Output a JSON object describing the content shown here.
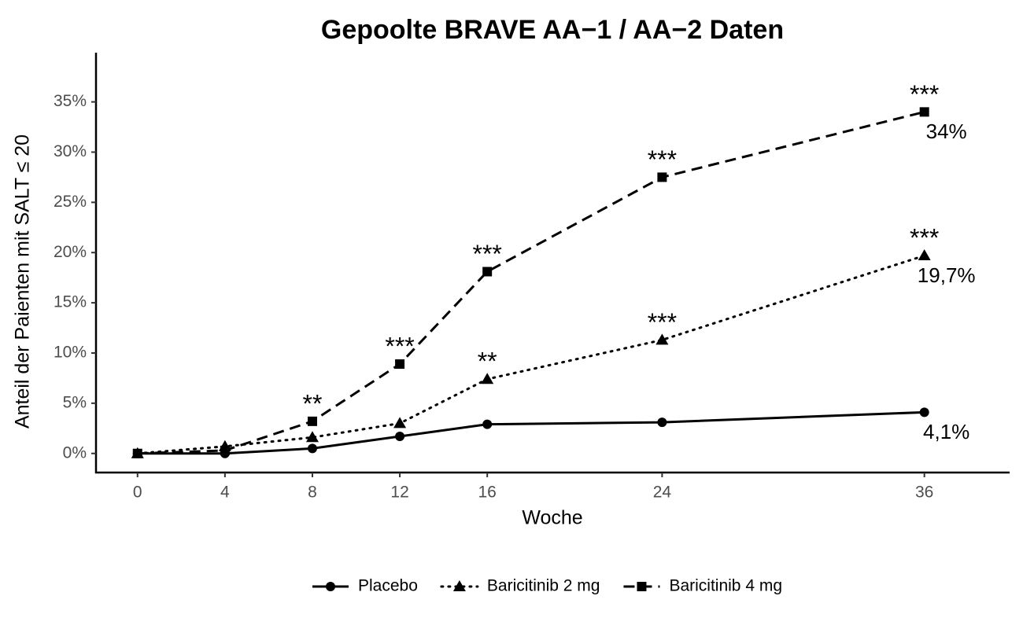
{
  "chart_data": {
    "type": "line",
    "title": "Gepoolte BRAVE AA−1 / AA−2 Daten",
    "x_label": "Woche",
    "y_label": "Anteil der Paienten mit SALT ≤ 20",
    "x": [
      0,
      4,
      8,
      12,
      16,
      24,
      36
    ],
    "xlim": [
      -1.9,
      39.9
    ],
    "xticks": [
      0,
      4,
      8,
      12,
      16,
      24,
      36
    ],
    "ylim": [
      -1.9,
      39.9
    ],
    "yticks": [
      {
        "value": 0,
        "label": "0%"
      },
      {
        "value": 5,
        "label": "5%"
      },
      {
        "value": 10,
        "label": "10%"
      },
      {
        "value": 15,
        "label": "15%"
      },
      {
        "value": 20,
        "label": "20%"
      },
      {
        "value": 25,
        "label": "25%"
      },
      {
        "value": 30,
        "label": "30%"
      },
      {
        "value": 35,
        "label": "35%"
      }
    ],
    "grid": false,
    "legend": "bottom",
    "series": [
      {
        "name": "Placebo",
        "color": "#000000",
        "dash": "solid",
        "marker": "circle",
        "values": [
          0,
          0,
          0.5,
          1.7,
          2.9,
          3.1,
          4.1
        ],
        "value_labels": [
          null,
          null,
          null,
          null,
          null,
          null,
          "4,1%"
        ]
      },
      {
        "name": "Baricitinib 2 mg",
        "color": "#000000",
        "dash": "dotted",
        "marker": "triangle",
        "values": [
          0,
          0.7,
          1.6,
          3.0,
          7.4,
          11.3,
          19.7
        ],
        "value_labels": [
          null,
          null,
          null,
          null,
          null,
          null,
          "19,7%"
        ],
        "significance": [
          null,
          null,
          null,
          null,
          "**",
          "***",
          "***"
        ]
      },
      {
        "name": "Baricitinib 4 mg",
        "color": "#000000",
        "dash": "dashed",
        "marker": "square",
        "values": [
          0,
          0.3,
          3.2,
          8.9,
          18.1,
          27.5,
          34
        ],
        "value_labels": [
          null,
          null,
          null,
          null,
          null,
          null,
          "34%"
        ],
        "significance": [
          null,
          null,
          "**",
          "***",
          "***",
          "***",
          "***"
        ]
      }
    ]
  }
}
